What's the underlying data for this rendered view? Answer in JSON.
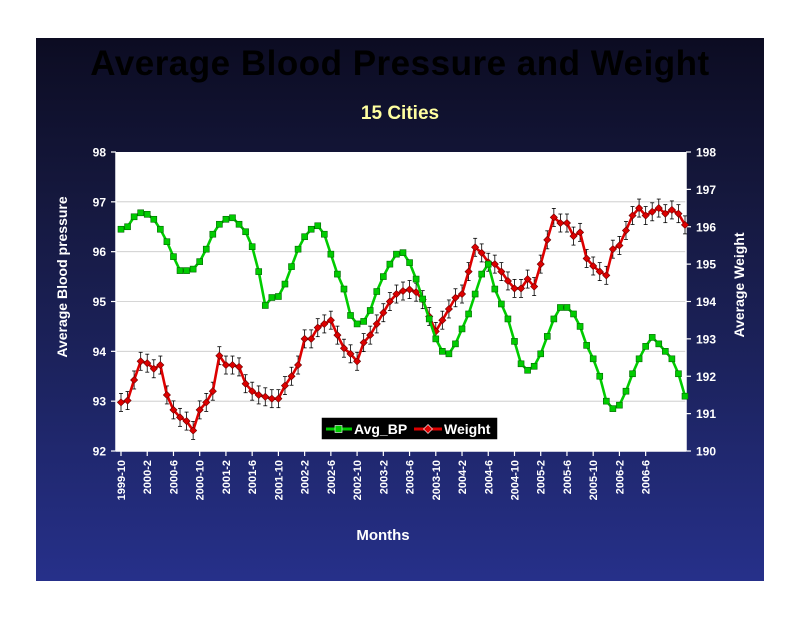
{
  "slide": {
    "title": "Average Blood Pressure and Weight"
  },
  "colors": {
    "background_top": "#0c0c22",
    "background_bottom": "#26308a",
    "plot_area": "#ffffff",
    "bp_series": "#00cc00",
    "weight_series": "#dd0000",
    "title": "#ffffa0",
    "text": "#ffffff"
  },
  "chart_data": {
    "type": "line",
    "title": "15 Cities",
    "xlabel": "Months",
    "ylabel_left": "Average Blood pressure",
    "ylabel_right": "Average Weight",
    "ylim_left": [
      92,
      98
    ],
    "ylim_right": [
      190,
      198
    ],
    "yticks_left": [
      "92",
      "93",
      "94",
      "95",
      "96",
      "97",
      "98"
    ],
    "yticks_right": [
      "190",
      "191",
      "192",
      "193",
      "194",
      "195",
      "196",
      "197",
      "198"
    ],
    "x_tick_labels": [
      "1999-10",
      "2000-2",
      "2000-6",
      "2000-10",
      "2001-2",
      "2001-6",
      "2001-10",
      "2002-2",
      "2002-6",
      "2002-10",
      "2003-2",
      "2003-6",
      "2003-10",
      "2004-2",
      "2004-6",
      "2004-10",
      "2005-2",
      "2005-6",
      "2005-10",
      "2006-2",
      "2006-6"
    ],
    "grid": true,
    "legend_position": "bottom-center",
    "series": [
      {
        "name": "Avg_BP",
        "axis": "left",
        "marker": "square",
        "values": [
          96.45,
          96.5,
          96.7,
          96.78,
          96.75,
          96.65,
          96.45,
          96.2,
          95.9,
          95.62,
          95.62,
          95.65,
          95.8,
          96.05,
          96.35,
          96.55,
          96.65,
          96.68,
          96.55,
          96.4,
          96.1,
          95.6,
          94.92,
          95.08,
          95.1,
          95.35,
          95.7,
          96.05,
          96.3,
          96.45,
          96.52,
          96.35,
          95.95,
          95.55,
          95.25,
          94.72,
          94.55,
          94.6,
          94.82,
          95.2,
          95.5,
          95.75,
          95.95,
          95.98,
          95.78,
          95.45,
          95.05,
          94.65,
          94.25,
          94.0,
          93.95,
          94.15,
          94.45,
          94.75,
          95.15,
          95.55,
          95.75,
          95.25,
          94.95,
          94.65,
          94.2,
          93.75,
          93.62,
          93.7,
          93.95,
          94.3,
          94.65,
          94.88,
          94.88,
          94.75,
          94.5,
          94.12,
          93.85,
          93.5,
          93.0,
          92.85,
          92.92,
          93.2,
          93.55,
          93.85,
          94.1,
          94.28,
          94.15,
          94.0,
          93.85,
          93.55,
          93.1
        ]
      },
      {
        "name": "Weight",
        "axis": "right",
        "marker": "diamond",
        "error_bars": true,
        "values": [
          191.3,
          191.35,
          191.9,
          192.4,
          192.35,
          192.2,
          192.3,
          191.5,
          191.1,
          190.9,
          190.8,
          190.55,
          191.1,
          191.3,
          191.6,
          192.55,
          192.3,
          192.3,
          192.25,
          191.8,
          191.6,
          191.5,
          191.45,
          191.4,
          191.4,
          191.75,
          192.0,
          192.3,
          193.0,
          193.0,
          193.3,
          193.4,
          193.5,
          193.1,
          192.75,
          192.6,
          192.4,
          192.9,
          193.1,
          193.4,
          193.7,
          194.0,
          194.2,
          194.28,
          194.32,
          194.25,
          194.05,
          193.6,
          193.2,
          193.5,
          193.8,
          194.1,
          194.2,
          194.8,
          195.45,
          195.3,
          195.05,
          195.0,
          194.8,
          194.55,
          194.35,
          194.35,
          194.6,
          194.4,
          195.0,
          195.65,
          196.25,
          196.1,
          196.1,
          195.75,
          195.85,
          195.15,
          194.95,
          194.8,
          194.7,
          195.4,
          195.5,
          195.9,
          196.3,
          196.5,
          196.3,
          196.4,
          196.5,
          196.35,
          196.45,
          196.35,
          196.05
        ]
      }
    ]
  }
}
